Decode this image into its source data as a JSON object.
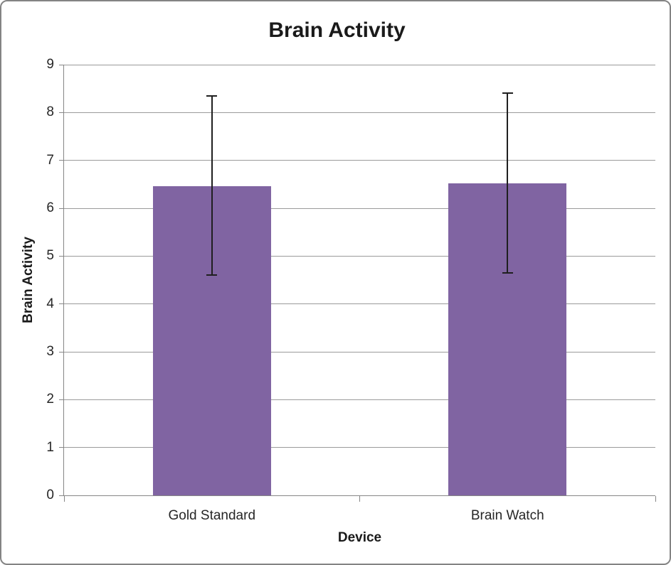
{
  "window": {
    "background_color": "#FFFFFF",
    "border_color": "#848484"
  },
  "chart_data": {
    "type": "bar",
    "title": "Brain Activity",
    "xlabel": "Device",
    "ylabel": "Brain Activity",
    "categories": [
      "Gold Standard",
      "Brain Watch"
    ],
    "values": [
      6.46,
      6.52
    ],
    "error_low": [
      4.61,
      4.65
    ],
    "error_high": [
      8.35,
      8.41
    ],
    "ylim": [
      0,
      9
    ],
    "yticks": [
      0,
      1,
      2,
      3,
      4,
      5,
      6,
      7,
      8,
      9
    ],
    "grid": true,
    "legend": false,
    "bar_color": "#8064A2",
    "gridline_color": "#9A9A9A",
    "axis_color": "#868686",
    "error_bar_color": "#1F1F1F",
    "text_color": "#262626",
    "bar_width_fraction": 0.4
  }
}
